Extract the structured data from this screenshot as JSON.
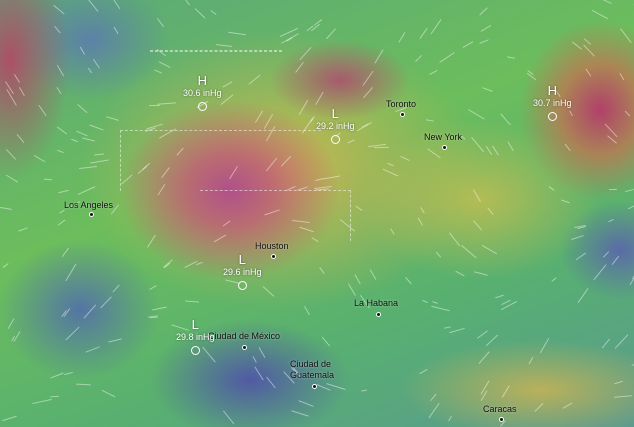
{
  "map": {
    "layer": "wind / pressure",
    "colors": {
      "high_wind": "#b0508a",
      "medium_wind": "#d7b450",
      "low_wind": "#6cbd5c",
      "calm": "#5a5aaa"
    },
    "cities": [
      {
        "name": "Los Angeles"
      },
      {
        "name": "Houston"
      },
      {
        "name": "Toronto"
      },
      {
        "name": "New York"
      },
      {
        "name": "La Habana"
      },
      {
        "name": "Ciudad de México"
      },
      {
        "name": "Ciudad de Guatemala"
      },
      {
        "name": "Caracas"
      }
    ],
    "pressure_centers": [
      {
        "type": "H",
        "value": "30.6 inHg"
      },
      {
        "type": "L",
        "value": "29.2 inHg"
      },
      {
        "type": "L",
        "value": "29.6 inHg"
      },
      {
        "type": "L",
        "value": "29.8 inHg"
      },
      {
        "type": "H",
        "value": "30.7 inHg"
      }
    ]
  }
}
